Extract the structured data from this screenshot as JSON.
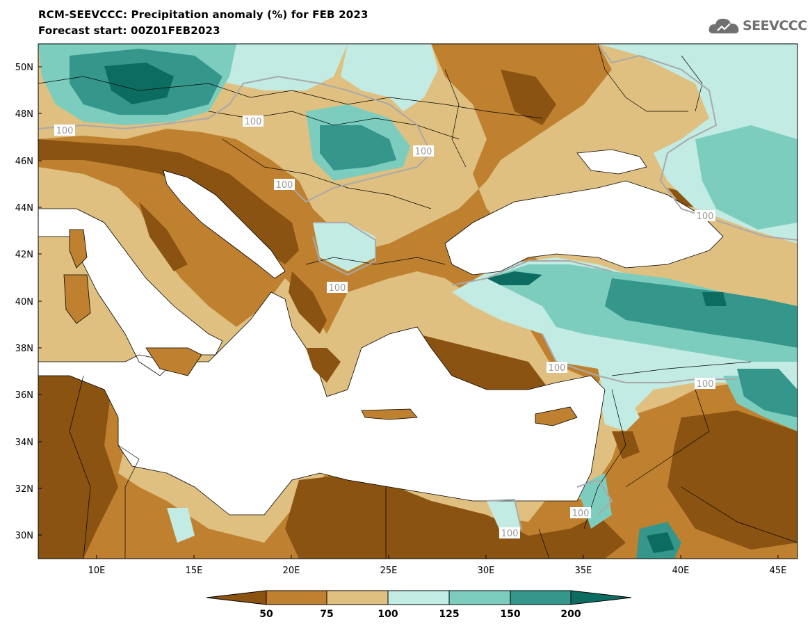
{
  "header": {
    "title": "RCM-SEEVCCC: Precipitation anomaly (%) for FEB 2023",
    "subtitle": "Forecast start: 00Z01FEB2023"
  },
  "logo": {
    "text": "SEEVCCC",
    "icon": "cloud-logo-icon"
  },
  "map": {
    "lon_range": [
      7,
      46
    ],
    "lat_range": [
      29,
      51
    ],
    "lat_labels": [
      "50N",
      "48N",
      "46N",
      "44N",
      "42N",
      "40N",
      "38N",
      "36N",
      "34N",
      "32N",
      "30N"
    ],
    "lon_labels": [
      "10E",
      "15E",
      "20E",
      "25E",
      "30E",
      "35E",
      "40E",
      "45E"
    ],
    "contour_label": "100",
    "sea_color": "#ffffff",
    "contour_line_color": "#a9a9a9"
  },
  "legend": {
    "ticks": [
      "50",
      "75",
      "100",
      "125",
      "150",
      "200"
    ],
    "colors": [
      "#8a5312",
      "#bf8130",
      "#dfc080",
      "#c2ebe3",
      "#7dcdbf",
      "#35968c",
      "#0d6c62"
    ]
  }
}
